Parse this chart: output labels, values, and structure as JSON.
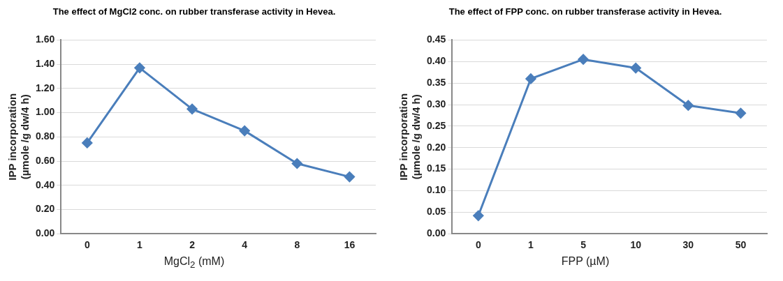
{
  "chart_data": [
    {
      "type": "line",
      "title": "The effect of MgCl2 conc. on rubber transferase activity in Hevea.",
      "xlabel": "MgCl$_{2}$ (mM)",
      "ylabel": "IPP incorporation (µmole /g dw/4 h)",
      "categories": [
        "0",
        "1",
        "2",
        "4",
        "8",
        "16"
      ],
      "series": [
        {
          "color": "#4a7ebb",
          "values": [
            0.75,
            1.37,
            1.03,
            0.85,
            0.58,
            0.47
          ]
        }
      ],
      "ylim": [
        0,
        1.6
      ],
      "yticks": [
        {
          "value": 0,
          "label": "0.00"
        },
        {
          "value": 0.2,
          "label": "0.20"
        },
        {
          "value": 0.4,
          "label": "0.40"
        },
        {
          "value": 0.6,
          "label": "0.60"
        },
        {
          "value": 0.8,
          "label": "0.80"
        },
        {
          "value": 1,
          "label": "1.00"
        },
        {
          "value": 1.2,
          "label": "1.20"
        },
        {
          "value": 1.4,
          "label": "1.40"
        },
        {
          "value": 1.6,
          "label": "1.60"
        }
      ],
      "grid": "y",
      "legend": false,
      "marker": "diamond",
      "line_style": "solid"
    },
    {
      "type": "line",
      "title": "The effect of FPP conc. on rubber transferase activity in Hevea.",
      "xlabel": "FPP (µM)",
      "ylabel": "IPP incorporation (µmole /g dw/4 h)",
      "categories": [
        "0",
        "1",
        "5",
        "10",
        "30",
        "50"
      ],
      "series": [
        {
          "color": "#4a7ebb",
          "values": [
            0.042,
            0.36,
            0.405,
            0.385,
            0.298,
            0.28
          ]
        }
      ],
      "ylim": [
        0,
        0.45
      ],
      "yticks": [
        {
          "value": 0,
          "label": "0.00"
        },
        {
          "value": 0.05,
          "label": "0.05"
        },
        {
          "value": 0.1,
          "label": "0.10"
        },
        {
          "value": 0.15,
          "label": "0.15"
        },
        {
          "value": 0.2,
          "label": "0.20"
        },
        {
          "value": 0.25,
          "label": "0.25"
        },
        {
          "value": 0.3,
          "label": "0.30"
        },
        {
          "value": 0.35,
          "label": "0.35"
        },
        {
          "value": 0.4,
          "label": "0.40"
        },
        {
          "value": 0.45,
          "label": "0.45"
        }
      ],
      "grid": "y",
      "legend": false,
      "marker": "diamond",
      "line_style": "solid"
    }
  ]
}
